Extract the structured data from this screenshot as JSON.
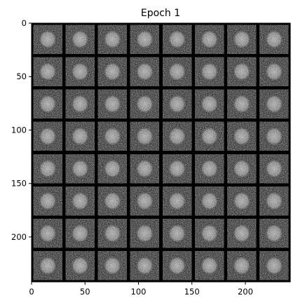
{
  "figure": {
    "title": "Epoch 1",
    "x_ticks": [
      "0",
      "50",
      "100",
      "150",
      "200"
    ],
    "y_ticks": [
      "0",
      "50",
      "100",
      "150",
      "200"
    ],
    "x_tick_values": [
      0,
      50,
      100,
      150,
      200
    ],
    "y_tick_values": [
      0,
      50,
      100,
      150,
      200
    ],
    "extent": [
      0,
      242
    ],
    "grid": {
      "rows": 8,
      "cols": 8
    }
  }
}
